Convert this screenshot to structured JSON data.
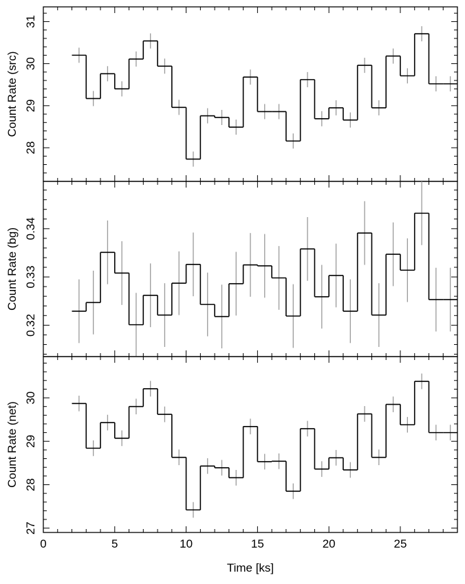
{
  "chart_data": [
    {
      "type": "step",
      "panel": "src",
      "ylabel": "Count Rate (src)",
      "xlabel": "",
      "xlim": [
        0,
        29
      ],
      "ylim": [
        27.2,
        31.35
      ],
      "yticks": [
        28,
        29,
        30,
        31
      ],
      "bins": [
        {
          "x": 2.5,
          "y": 30.2,
          "err": 0.18
        },
        {
          "x": 3.5,
          "y": 29.17,
          "err": 0.18
        },
        {
          "x": 4.5,
          "y": 29.76,
          "err": 0.18
        },
        {
          "x": 5.5,
          "y": 29.4,
          "err": 0.18
        },
        {
          "x": 6.5,
          "y": 30.11,
          "err": 0.18
        },
        {
          "x": 7.5,
          "y": 30.54,
          "err": 0.18
        },
        {
          "x": 8.5,
          "y": 29.94,
          "err": 0.18
        },
        {
          "x": 9.5,
          "y": 28.96,
          "err": 0.18
        },
        {
          "x": 10.5,
          "y": 27.73,
          "err": 0.18
        },
        {
          "x": 11.5,
          "y": 28.76,
          "err": 0.18
        },
        {
          "x": 12.5,
          "y": 28.72,
          "err": 0.18
        },
        {
          "x": 13.5,
          "y": 28.49,
          "err": 0.18
        },
        {
          "x": 14.5,
          "y": 29.68,
          "err": 0.18
        },
        {
          "x": 15.5,
          "y": 28.86,
          "err": 0.18
        },
        {
          "x": 16.5,
          "y": 28.86,
          "err": 0.18
        },
        {
          "x": 17.5,
          "y": 28.16,
          "err": 0.18
        },
        {
          "x": 18.5,
          "y": 29.62,
          "err": 0.18
        },
        {
          "x": 19.5,
          "y": 28.69,
          "err": 0.18
        },
        {
          "x": 20.5,
          "y": 28.95,
          "err": 0.18
        },
        {
          "x": 21.5,
          "y": 28.66,
          "err": 0.18
        },
        {
          "x": 22.5,
          "y": 29.96,
          "err": 0.18
        },
        {
          "x": 23.5,
          "y": 28.95,
          "err": 0.18
        },
        {
          "x": 24.5,
          "y": 30.18,
          "err": 0.18
        },
        {
          "x": 25.5,
          "y": 29.71,
          "err": 0.18
        },
        {
          "x": 26.5,
          "y": 30.71,
          "err": 0.18
        },
        {
          "x": 27.5,
          "y": 29.52,
          "err": 0.18
        },
        {
          "x": 28.5,
          "y": 29.52,
          "err": 0.18
        }
      ]
    },
    {
      "type": "step",
      "panel": "bg",
      "ylabel": "Count Rate (bg)",
      "xlabel": "",
      "xlim": [
        0,
        29
      ],
      "ylim": [
        0.3135,
        0.3498
      ],
      "yticks": [
        0.32,
        0.33,
        0.34
      ],
      "bins": [
        {
          "x": 2.5,
          "y": 0.3229,
          "err": 0.0066
        },
        {
          "x": 3.5,
          "y": 0.3247,
          "err": 0.0066
        },
        {
          "x": 4.5,
          "y": 0.3351,
          "err": 0.0066
        },
        {
          "x": 5.5,
          "y": 0.3308,
          "err": 0.0066
        },
        {
          "x": 6.5,
          "y": 0.3201,
          "err": 0.0066
        },
        {
          "x": 7.5,
          "y": 0.3262,
          "err": 0.0066
        },
        {
          "x": 8.5,
          "y": 0.3221,
          "err": 0.0066
        },
        {
          "x": 9.5,
          "y": 0.3287,
          "err": 0.0066
        },
        {
          "x": 10.5,
          "y": 0.3326,
          "err": 0.0066
        },
        {
          "x": 11.5,
          "y": 0.3243,
          "err": 0.0066
        },
        {
          "x": 12.5,
          "y": 0.3218,
          "err": 0.0066
        },
        {
          "x": 13.5,
          "y": 0.3286,
          "err": 0.0066
        },
        {
          "x": 14.5,
          "y": 0.3325,
          "err": 0.0066
        },
        {
          "x": 15.5,
          "y": 0.3323,
          "err": 0.0066
        },
        {
          "x": 16.5,
          "y": 0.3298,
          "err": 0.0066
        },
        {
          "x": 17.5,
          "y": 0.3219,
          "err": 0.0066
        },
        {
          "x": 18.5,
          "y": 0.3358,
          "err": 0.0066
        },
        {
          "x": 19.5,
          "y": 0.3259,
          "err": 0.0066
        },
        {
          "x": 20.5,
          "y": 0.3303,
          "err": 0.0066
        },
        {
          "x": 21.5,
          "y": 0.3229,
          "err": 0.0066
        },
        {
          "x": 22.5,
          "y": 0.3391,
          "err": 0.0066
        },
        {
          "x": 23.5,
          "y": 0.3221,
          "err": 0.0066
        },
        {
          "x": 24.5,
          "y": 0.3347,
          "err": 0.0066
        },
        {
          "x": 25.5,
          "y": 0.3314,
          "err": 0.0066
        },
        {
          "x": 26.5,
          "y": 0.3432,
          "err": 0.0066
        },
        {
          "x": 27.5,
          "y": 0.3253,
          "err": 0.0066
        },
        {
          "x": 28.5,
          "y": 0.3253,
          "err": 0.0066
        }
      ]
    },
    {
      "type": "step",
      "panel": "net",
      "ylabel": "Count Rate (net)",
      "xlabel": "Time [ks]",
      "xlim": [
        0,
        29
      ],
      "ylim": [
        26.9,
        30.95
      ],
      "xticks": [
        0,
        5,
        10,
        15,
        20,
        25
      ],
      "yticks": [
        27,
        28,
        29,
        30
      ],
      "bins": [
        {
          "x": 2.5,
          "y": 29.87,
          "err": 0.18
        },
        {
          "x": 3.5,
          "y": 28.84,
          "err": 0.18
        },
        {
          "x": 4.5,
          "y": 29.43,
          "err": 0.18
        },
        {
          "x": 5.5,
          "y": 29.07,
          "err": 0.18
        },
        {
          "x": 6.5,
          "y": 29.8,
          "err": 0.18
        },
        {
          "x": 7.5,
          "y": 30.21,
          "err": 0.18
        },
        {
          "x": 8.5,
          "y": 29.62,
          "err": 0.18
        },
        {
          "x": 9.5,
          "y": 28.63,
          "err": 0.18
        },
        {
          "x": 10.5,
          "y": 27.42,
          "err": 0.18
        },
        {
          "x": 11.5,
          "y": 28.43,
          "err": 0.18
        },
        {
          "x": 12.5,
          "y": 28.39,
          "err": 0.18
        },
        {
          "x": 13.5,
          "y": 28.16,
          "err": 0.18
        },
        {
          "x": 14.5,
          "y": 29.34,
          "err": 0.18
        },
        {
          "x": 15.5,
          "y": 28.53,
          "err": 0.18
        },
        {
          "x": 16.5,
          "y": 28.54,
          "err": 0.18
        },
        {
          "x": 17.5,
          "y": 27.85,
          "err": 0.18
        },
        {
          "x": 18.5,
          "y": 29.29,
          "err": 0.18
        },
        {
          "x": 19.5,
          "y": 28.36,
          "err": 0.18
        },
        {
          "x": 20.5,
          "y": 28.62,
          "err": 0.18
        },
        {
          "x": 21.5,
          "y": 28.34,
          "err": 0.18
        },
        {
          "x": 22.5,
          "y": 29.63,
          "err": 0.18
        },
        {
          "x": 23.5,
          "y": 28.63,
          "err": 0.18
        },
        {
          "x": 24.5,
          "y": 29.85,
          "err": 0.18
        },
        {
          "x": 25.5,
          "y": 29.38,
          "err": 0.18
        },
        {
          "x": 26.5,
          "y": 30.38,
          "err": 0.18
        },
        {
          "x": 27.5,
          "y": 29.2,
          "err": 0.18
        },
        {
          "x": 28.5,
          "y": 29.2,
          "err": 0.18
        }
      ]
    }
  ],
  "style": {
    "line_color": "#000000",
    "errorbar_color": "#999999",
    "frame_color": "#000000",
    "background": "#ffffff"
  }
}
